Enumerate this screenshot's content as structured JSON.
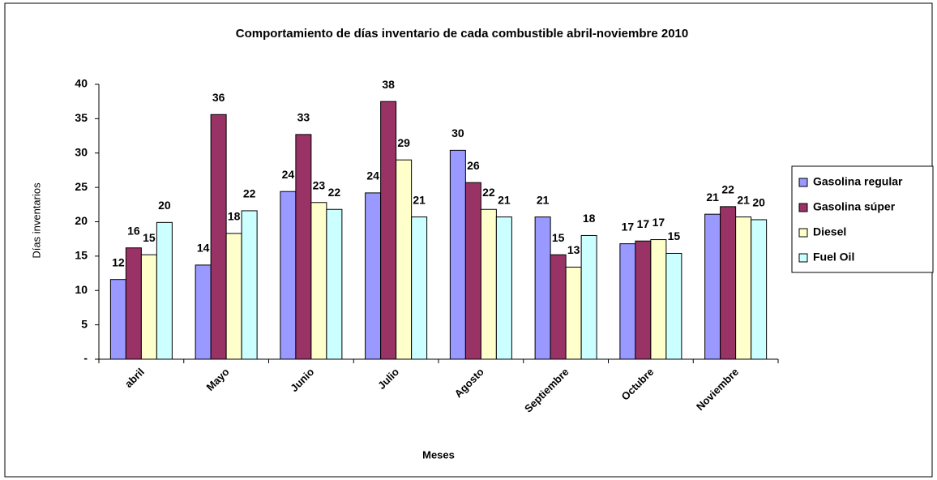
{
  "chart_data": {
    "type": "bar",
    "title": "Comportamiento de días inventario de cada combustible abril-noviembre 2010",
    "x_label": "Meses",
    "y_label": "Días inventarios",
    "categories": [
      "abril",
      "Mayo",
      "Junio",
      "Julio",
      "Agosto",
      "Septiembre",
      "Octubre",
      "Noviembre"
    ],
    "series": [
      {
        "name": "Gasolina regular",
        "color": "#9999ff",
        "values": [
          11.6,
          13.7,
          24.4,
          24.2,
          30.4,
          20.7,
          16.8,
          21.1
        ],
        "value_labels": [
          "12",
          "14",
          "24",
          "24",
          "30",
          "21",
          "17",
          "21"
        ]
      },
      {
        "name": "Gasolina súper",
        "color": "#993366",
        "values": [
          16.2,
          35.6,
          32.7,
          37.5,
          25.7,
          15.2,
          17.2,
          22.2
        ],
        "value_labels": [
          "16",
          "36",
          "33",
          "38",
          "26",
          "15",
          "17",
          "22"
        ]
      },
      {
        "name": "Diesel",
        "color": "#ffffcc",
        "values": [
          15.2,
          18.3,
          22.8,
          29.0,
          21.8,
          13.4,
          17.4,
          20.7
        ],
        "value_labels": [
          "15",
          "18",
          "23",
          "29",
          "22",
          "13",
          "17",
          "21"
        ]
      },
      {
        "name": "Fuel Oil",
        "color": "#ccffff",
        "values": [
          19.9,
          21.6,
          21.8,
          20.7,
          20.7,
          18.0,
          15.4,
          20.3
        ],
        "value_labels": [
          "20",
          "22",
          "22",
          "21",
          "21",
          "18",
          "15",
          "20"
        ]
      }
    ],
    "ylim": [
      0,
      40
    ],
    "yticks": [
      {
        "value": 0,
        "label": "-"
      },
      5,
      10,
      15,
      20,
      25,
      30,
      35,
      40
    ],
    "legend": "right"
  }
}
